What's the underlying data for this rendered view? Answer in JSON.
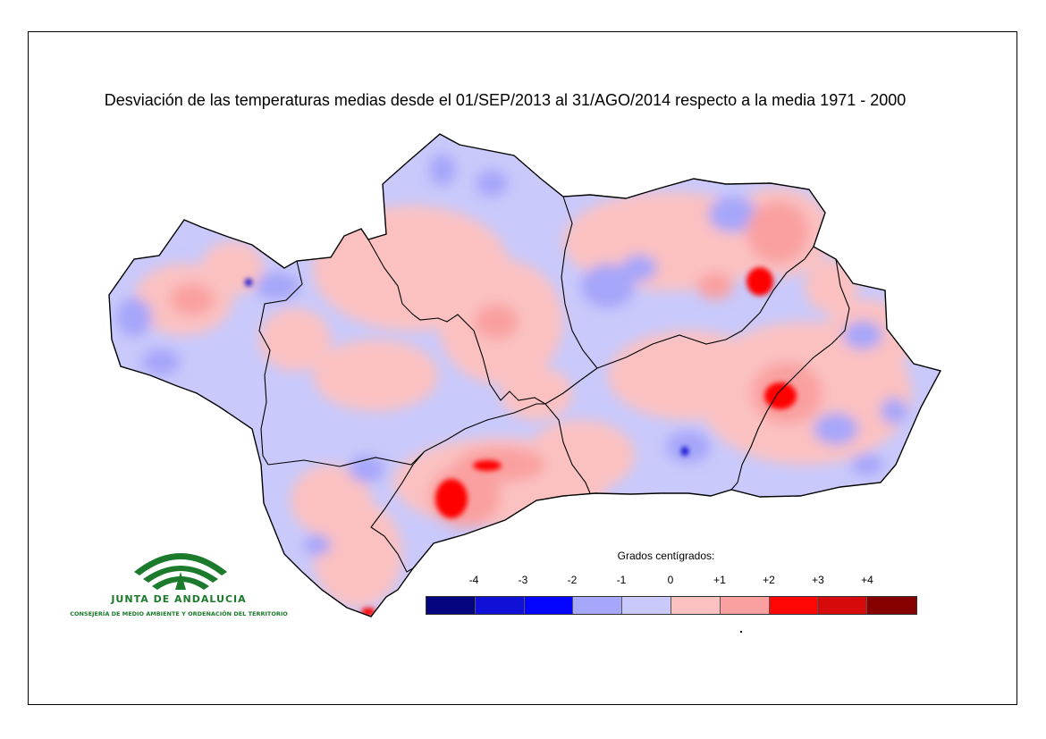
{
  "title": "Desviación de las temperaturas medias desde el 01/SEP/2013 al 31/AGO/2014 respecto a la media 1971 - 2000",
  "logo": {
    "name": "JUNTA DE ANDALUCIA",
    "subtitle": "CONSEJERÍA DE MEDIO AMBIENTE Y ORDENACIÓN DEL TERRITORIO",
    "color": "#1b7a2b"
  },
  "legend": {
    "title": "Grados centígrados:",
    "ticks": [
      "-4",
      "-3",
      "-2",
      "-1",
      "0",
      "+1",
      "+2",
      "+3",
      "+4"
    ],
    "colors": [
      "#05057f",
      "#1010d6",
      "#0505ff",
      "#a6a6fa",
      "#c9c9fb",
      "#fbc1c1",
      "#faa0a0",
      "#fe0606",
      "#d60a0a",
      "#870000"
    ]
  },
  "map": {
    "region": "Andalucía",
    "colors": {
      "cool_light": "#c9c9fb",
      "cool_mid": "#a6a6fa",
      "cool_strong": "#0505cf",
      "warm_light": "#fbc1c1",
      "warm_mid": "#faa0a0",
      "warm_strong": "#fe0606",
      "warm_dark": "#d60a0a",
      "border": "#000000"
    }
  }
}
